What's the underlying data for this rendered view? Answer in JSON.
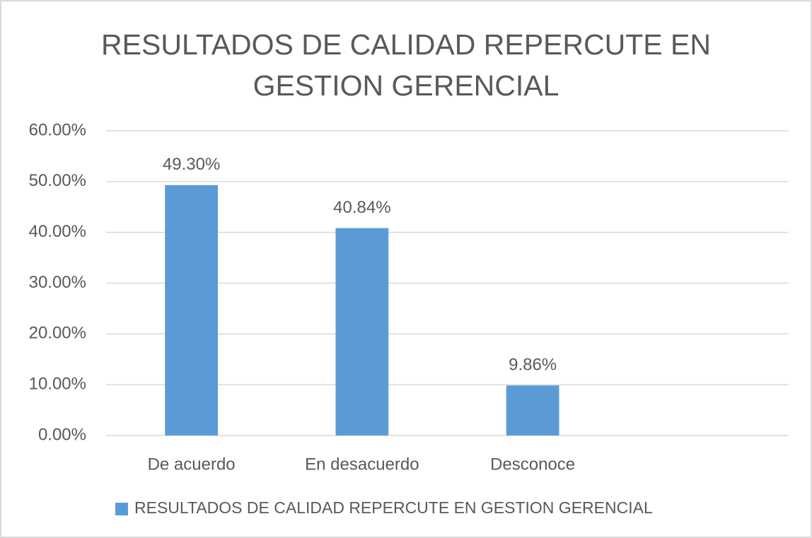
{
  "chart_data": {
    "type": "bar",
    "title": "RESULTADOS DE CALIDAD REPERCUTE EN GESTION GERENCIAL",
    "categories": [
      "De acuerdo",
      "En desacuerdo",
      "Desconoce",
      null
    ],
    "series": [
      {
        "name": "RESULTADOS DE CALIDAD REPERCUTE EN GESTION GERENCIAL",
        "color": "#5b9bd5",
        "values": [
          49.3,
          40.84,
          9.86,
          null
        ],
        "value_labels": [
          "49.30%",
          "40.84%",
          "9.86%",
          null
        ]
      }
    ],
    "ylim": [
      0,
      60
    ],
    "yticks": [
      {
        "value": 0,
        "label": "0.00%"
      },
      {
        "value": 10,
        "label": "10.00%"
      },
      {
        "value": 20,
        "label": "20.00%"
      },
      {
        "value": 30,
        "label": "30.00%"
      },
      {
        "value": 40,
        "label": "40.00%"
      },
      {
        "value": 50,
        "label": "50.00%"
      },
      {
        "value": 60,
        "label": "60.00%"
      }
    ],
    "grid": true,
    "legend": "bottom"
  }
}
